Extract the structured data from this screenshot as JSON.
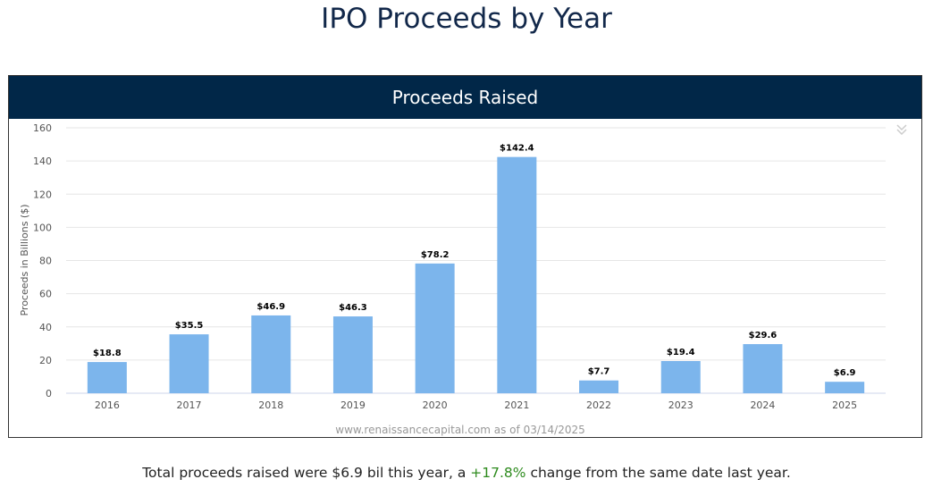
{
  "page": {
    "title": "IPO Proceeds by Year"
  },
  "panel": {
    "header": "Proceeds Raised",
    "source": "www.renaissancecapital.com as of 03/14/2025"
  },
  "footnote": {
    "text_before": "Total proceeds raised were $6.9 bil this year, a ",
    "change": "+17.8%",
    "text_after": " change from the same date last year."
  },
  "colors": {
    "bar": "#7cb5ec",
    "header_bg": "#012748",
    "title": "#12284a",
    "positive": "#2e8b1e"
  },
  "chart_data": {
    "type": "bar",
    "title": "Proceeds Raised",
    "ylabel": "Proceeds in Billions ($)",
    "xlabel": "",
    "categories": [
      "2016",
      "2017",
      "2018",
      "2019",
      "2020",
      "2021",
      "2022",
      "2023",
      "2024",
      "2025"
    ],
    "values": [
      18.8,
      35.5,
      46.9,
      46.3,
      78.2,
      142.4,
      7.7,
      19.4,
      29.6,
      6.9
    ],
    "data_labels": [
      "$18.8",
      "$35.5",
      "$46.9",
      "$46.3",
      "$78.2",
      "$142.4",
      "$7.7",
      "$19.4",
      "$29.6",
      "$6.9"
    ],
    "yticks": [
      0,
      20,
      40,
      60,
      80,
      100,
      120,
      140,
      160
    ],
    "ylim": [
      0,
      160
    ],
    "grid": true,
    "legend": "none"
  }
}
